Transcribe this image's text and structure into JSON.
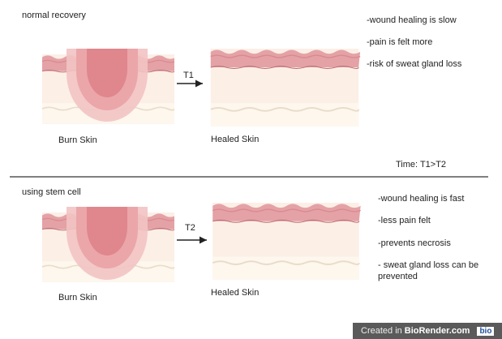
{
  "sections": [
    {
      "title": "normal recovery",
      "burn_label": "Burn Skin",
      "arrow_label": "T1",
      "healed_label": "Healed Skin",
      "notes": [
        "-wound healing is slow",
        "-pain is felt more",
        "-risk of sweat gland loss"
      ]
    },
    {
      "title": "using stem cell",
      "burn_label": "Burn Skin",
      "arrow_label": "T2",
      "healed_label": "Healed Skin",
      "notes": [
        "-wound healing is fast",
        "-less pain felt",
        "-prevents necrosis",
        "- sweat gland loss can be prevented"
      ]
    }
  ],
  "time_note": "Time: T1>T2",
  "footer": {
    "prefix": "Created in",
    "brand": "BioRender.com",
    "logo": "bio"
  }
}
